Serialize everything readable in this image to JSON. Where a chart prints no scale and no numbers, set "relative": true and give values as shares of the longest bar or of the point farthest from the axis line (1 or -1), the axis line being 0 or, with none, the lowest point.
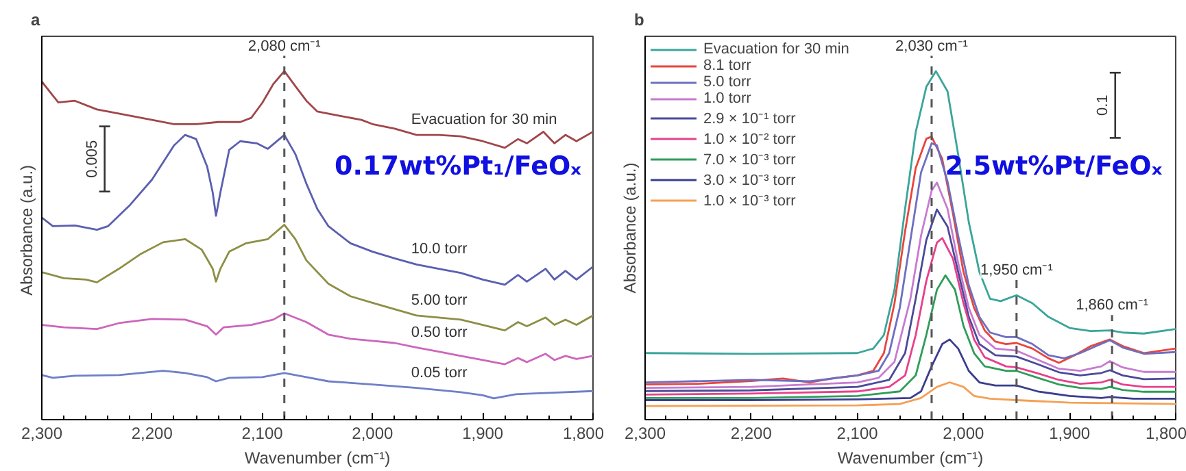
{
  "chart_data": [
    {
      "type": "line",
      "title": "a",
      "xlabel": "Wavenumber (cm⁻¹)",
      "ylabel": "Absorbance  (a.u.)",
      "relative": true,
      "grid": false,
      "legend": false,
      "xlim": [
        2300,
        1800
      ],
      "xticks": [
        {
          "value": 2300,
          "label": "2,300"
        },
        {
          "value": 2200,
          "label": "2,200"
        },
        {
          "value": 2100,
          "label": "2,100"
        },
        {
          "value": 2000,
          "label": "2,000"
        },
        {
          "value": 1900,
          "label": "1,900"
        },
        {
          "value": 1800,
          "label": "1,800"
        }
      ],
      "ref_lines": [
        {
          "axis": "x",
          "value": 2080,
          "label": "2,080 cm⁻¹",
          "color": "#555555",
          "line_style": "dashed"
        }
      ],
      "annotations": [
        "0.17wt%Pt₁/FeOₓ",
        "0.005"
      ],
      "series": [
        {
          "name": "Evacuation for 30 min",
          "color": "#a0474a",
          "x": [
            2300,
            2290,
            2285,
            2270,
            2250,
            2240,
            2200,
            2180,
            2160,
            2140,
            2120,
            2110,
            2100,
            2090,
            2080,
            2070,
            2060,
            2050,
            2030,
            2010,
            2000,
            1980,
            1960,
            1940,
            1920,
            1900,
            1880,
            1868,
            1860,
            1845,
            1835,
            1825,
            1815,
            1800
          ],
          "values": [
            0.97,
            0.93,
            0.91,
            0.915,
            0.89,
            0.884,
            0.86,
            0.848,
            0.848,
            0.854,
            0.854,
            0.866,
            0.909,
            0.963,
            1.0,
            0.957,
            0.915,
            0.884,
            0.872,
            0.86,
            0.848,
            0.835,
            0.817,
            0.817,
            0.813,
            0.799,
            0.78,
            0.805,
            0.793,
            0.826,
            0.793,
            0.817,
            0.799,
            0.826
          ]
        },
        {
          "name": "10.0 torr",
          "color": "#5a5fb0",
          "x": [
            2300,
            2290,
            2270,
            2250,
            2240,
            2220,
            2200,
            2180,
            2170,
            2160,
            2150,
            2145,
            2142,
            2138,
            2130,
            2120,
            2105,
            2095,
            2080,
            2070,
            2060,
            2050,
            2040,
            2020,
            2000,
            1980,
            1960,
            1940,
            1920,
            1900,
            1880,
            1868,
            1860,
            1843,
            1835,
            1825,
            1815,
            1800
          ],
          "values": [
            0.58,
            0.555,
            0.557,
            0.545,
            0.555,
            0.616,
            0.689,
            0.787,
            0.817,
            0.805,
            0.726,
            0.652,
            0.585,
            0.652,
            0.774,
            0.799,
            0.793,
            0.777,
            0.817,
            0.762,
            0.677,
            0.604,
            0.555,
            0.506,
            0.482,
            0.463,
            0.445,
            0.433,
            0.421,
            0.402,
            0.387,
            0.415,
            0.396,
            0.433,
            0.402,
            0.427,
            0.402,
            0.439
          ]
        },
        {
          "name": "5.00 torr",
          "color": "#8d8f45",
          "x": [
            2300,
            2280,
            2260,
            2250,
            2230,
            2210,
            2190,
            2170,
            2155,
            2145,
            2142,
            2138,
            2130,
            2115,
            2095,
            2080,
            2070,
            2060,
            2040,
            2020,
            2000,
            1980,
            1960,
            1940,
            1920,
            1900,
            1880,
            1868,
            1860,
            1843,
            1835,
            1825,
            1815,
            1800
          ],
          "values": [
            0.423,
            0.406,
            0.402,
            0.394,
            0.433,
            0.476,
            0.509,
            0.518,
            0.488,
            0.433,
            0.396,
            0.433,
            0.482,
            0.506,
            0.518,
            0.559,
            0.518,
            0.457,
            0.39,
            0.354,
            0.335,
            0.317,
            0.299,
            0.293,
            0.287,
            0.272,
            0.256,
            0.28,
            0.268,
            0.293,
            0.272,
            0.287,
            0.272,
            0.299
          ]
        },
        {
          "name": "0.50 torr",
          "color": "#cc66bb",
          "x": [
            2300,
            2280,
            2250,
            2230,
            2200,
            2170,
            2150,
            2142,
            2135,
            2110,
            2090,
            2080,
            2060,
            2040,
            2020,
            2000,
            1980,
            1960,
            1940,
            1920,
            1900,
            1880,
            1868,
            1860,
            1843,
            1835,
            1825,
            1815,
            1800
          ],
          "values": [
            0.272,
            0.265,
            0.26,
            0.277,
            0.289,
            0.287,
            0.268,
            0.244,
            0.265,
            0.272,
            0.287,
            0.305,
            0.28,
            0.244,
            0.232,
            0.226,
            0.22,
            0.207,
            0.195,
            0.183,
            0.171,
            0.159,
            0.177,
            0.165,
            0.189,
            0.171,
            0.183,
            0.174,
            0.183
          ]
        },
        {
          "name": "0.05 torr",
          "color": "#6e7fc8",
          "x": [
            2300,
            2290,
            2270,
            2230,
            2190,
            2170,
            2150,
            2142,
            2130,
            2100,
            2080,
            2060,
            2040,
            2000,
            1960,
            1920,
            1900,
            1890,
            1870,
            1840,
            1800
          ],
          "values": [
            0.128,
            0.12,
            0.126,
            0.128,
            0.14,
            0.134,
            0.122,
            0.11,
            0.12,
            0.122,
            0.134,
            0.122,
            0.11,
            0.101,
            0.091,
            0.079,
            0.07,
            0.061,
            0.073,
            0.077,
            0.082
          ]
        }
      ]
    },
    {
      "type": "line",
      "title": "b",
      "xlabel": "Wavenumber (cm⁻¹)",
      "ylabel": "Absorbance (a.u.)",
      "relative": true,
      "grid": false,
      "legend": "top left",
      "xlim": [
        2300,
        1800
      ],
      "xticks": [
        {
          "value": 2300,
          "label": "2,300"
        },
        {
          "value": 2200,
          "label": "2,200"
        },
        {
          "value": 2100,
          "label": "2,100"
        },
        {
          "value": 2000,
          "label": "2,000"
        },
        {
          "value": 1900,
          "label": "1,900"
        },
        {
          "value": 1800,
          "label": "1,800"
        }
      ],
      "ref_lines": [
        {
          "axis": "x",
          "value": 2030,
          "label": "2,030 cm⁻¹",
          "color": "#555555",
          "line_style": "dashed"
        },
        {
          "axis": "x",
          "value": 1950,
          "label": "1,950 cm⁻¹",
          "color": "#555555",
          "line_style": "dashed"
        },
        {
          "axis": "x",
          "value": 1860,
          "label": "1,860 cm⁻¹",
          "color": "#555555",
          "line_style": "dashed"
        }
      ],
      "annotations": [
        "2.5wt%Pt/FeOₓ",
        "0.1"
      ],
      "series": [
        {
          "name": "Evacuation for 30 min",
          "color": "#3aa59a",
          "x": [
            2300,
            2200,
            2100,
            2085,
            2075,
            2065,
            2055,
            2045,
            2035,
            2026,
            2015,
            2005,
            1995,
            1985,
            1975,
            1965,
            1950,
            1935,
            1920,
            1900,
            1880,
            1862,
            1850,
            1830,
            1800
          ],
          "values": [
            0.191,
            0.189,
            0.191,
            0.204,
            0.243,
            0.373,
            0.605,
            0.825,
            0.955,
            1.0,
            0.942,
            0.761,
            0.567,
            0.424,
            0.347,
            0.34,
            0.357,
            0.334,
            0.295,
            0.263,
            0.254,
            0.256,
            0.25,
            0.247,
            0.26
          ]
        },
        {
          "name": "8.1 torr",
          "color": "#e8453c",
          "x": [
            2300,
            2250,
            2200,
            2170,
            2145,
            2120,
            2100,
            2085,
            2075,
            2065,
            2055,
            2045,
            2035,
            2030,
            2020,
            2010,
            2000,
            1990,
            1980,
            1970,
            1960,
            1950,
            1935,
            1920,
            1910,
            1895,
            1880,
            1862,
            1850,
            1830,
            1800
          ],
          "values": [
            0.101,
            0.103,
            0.111,
            0.118,
            0.107,
            0.12,
            0.127,
            0.14,
            0.191,
            0.334,
            0.541,
            0.722,
            0.806,
            0.812,
            0.748,
            0.593,
            0.424,
            0.321,
            0.256,
            0.224,
            0.217,
            0.22,
            0.204,
            0.176,
            0.163,
            0.185,
            0.211,
            0.23,
            0.211,
            0.191,
            0.204
          ]
        },
        {
          "name": "5.0 torr",
          "color": "#6d6fc0",
          "x": [
            2300,
            2200,
            2145,
            2100,
            2080,
            2070,
            2060,
            2050,
            2040,
            2030,
            2025,
            2015,
            2005,
            1995,
            1985,
            1975,
            1960,
            1950,
            1935,
            1920,
            1905,
            1890,
            1875,
            1862,
            1850,
            1830,
            1800
          ],
          "values": [
            0.107,
            0.114,
            0.11,
            0.127,
            0.14,
            0.191,
            0.321,
            0.515,
            0.709,
            0.793,
            0.787,
            0.683,
            0.528,
            0.386,
            0.295,
            0.25,
            0.237,
            0.237,
            0.217,
            0.185,
            0.176,
            0.191,
            0.211,
            0.228,
            0.207,
            0.189,
            0.194
          ]
        },
        {
          "name": "1.0 torr",
          "color": "#c77bd0",
          "x": [
            2300,
            2200,
            2100,
            2080,
            2065,
            2050,
            2040,
            2030,
            2025,
            2015,
            2005,
            1995,
            1985,
            1970,
            1950,
            1930,
            1910,
            1890,
            1870,
            1862,
            1850,
            1830,
            1800
          ],
          "values": [
            0.091,
            0.094,
            0.107,
            0.12,
            0.166,
            0.347,
            0.528,
            0.657,
            0.68,
            0.605,
            0.45,
            0.321,
            0.243,
            0.204,
            0.198,
            0.172,
            0.146,
            0.14,
            0.153,
            0.168,
            0.15,
            0.137,
            0.137
          ]
        },
        {
          "name": "2.9 × 10⁻¹ torr",
          "color": "#4a4a9a",
          "x": [
            2300,
            2200,
            2100,
            2070,
            2055,
            2045,
            2035,
            2025,
            2015,
            2005,
            1995,
            1985,
            1970,
            1950,
            1930,
            1910,
            1890,
            1870,
            1862,
            1850,
            1830,
            1800
          ],
          "values": [
            0.082,
            0.084,
            0.094,
            0.114,
            0.191,
            0.347,
            0.515,
            0.603,
            0.554,
            0.424,
            0.295,
            0.217,
            0.185,
            0.181,
            0.159,
            0.136,
            0.127,
            0.134,
            0.142,
            0.127,
            0.116,
            0.118
          ]
        },
        {
          "name": "1.0 × 10⁻² torr",
          "color": "#e8408c",
          "x": [
            2300,
            2200,
            2100,
            2070,
            2055,
            2045,
            2035,
            2025,
            2020,
            2010,
            2000,
            1990,
            1980,
            1960,
            1950,
            1930,
            1910,
            1890,
            1870,
            1862,
            1850,
            1830,
            1800
          ],
          "values": [
            0.072,
            0.075,
            0.081,
            0.094,
            0.127,
            0.243,
            0.398,
            0.508,
            0.521,
            0.463,
            0.334,
            0.23,
            0.179,
            0.153,
            0.15,
            0.133,
            0.114,
            0.103,
            0.107,
            0.114,
            0.101,
            0.094,
            0.094
          ]
        },
        {
          "name": "7.0 × 10⁻³ torr",
          "color": "#2f9d5a",
          "x": [
            2300,
            2200,
            2100,
            2060,
            2045,
            2035,
            2025,
            2017,
            2008,
            2000,
            1990,
            1980,
            1960,
            1950,
            1930,
            1910,
            1890,
            1870,
            1862,
            1850,
            1830,
            1800
          ],
          "values": [
            0.062,
            0.062,
            0.068,
            0.081,
            0.127,
            0.243,
            0.373,
            0.414,
            0.373,
            0.269,
            0.191,
            0.153,
            0.14,
            0.14,
            0.12,
            0.101,
            0.091,
            0.088,
            0.094,
            0.085,
            0.08,
            0.08
          ]
        },
        {
          "name": "3.0 × 10⁻³ torr",
          "color": "#3a3d8f",
          "x": [
            2300,
            2200,
            2100,
            2050,
            2040,
            2030,
            2020,
            2013,
            2005,
            1995,
            1985,
            1970,
            1950,
            1930,
            1900,
            1870,
            1862,
            1840,
            1800
          ],
          "values": [
            0.056,
            0.056,
            0.058,
            0.062,
            0.081,
            0.153,
            0.217,
            0.23,
            0.204,
            0.14,
            0.107,
            0.098,
            0.098,
            0.081,
            0.068,
            0.062,
            0.065,
            0.06,
            0.06
          ]
        },
        {
          "name": "1.0 × 10⁻³ torr",
          "color": "#f4a055",
          "x": [
            2300,
            2200,
            2100,
            2060,
            2040,
            2025,
            2013,
            2000,
            1990,
            1975,
            1950,
            1900,
            1850,
            1800
          ],
          "values": [
            0.039,
            0.04,
            0.041,
            0.045,
            0.062,
            0.094,
            0.107,
            0.094,
            0.068,
            0.06,
            0.056,
            0.049,
            0.047,
            0.045
          ]
        }
      ]
    }
  ]
}
